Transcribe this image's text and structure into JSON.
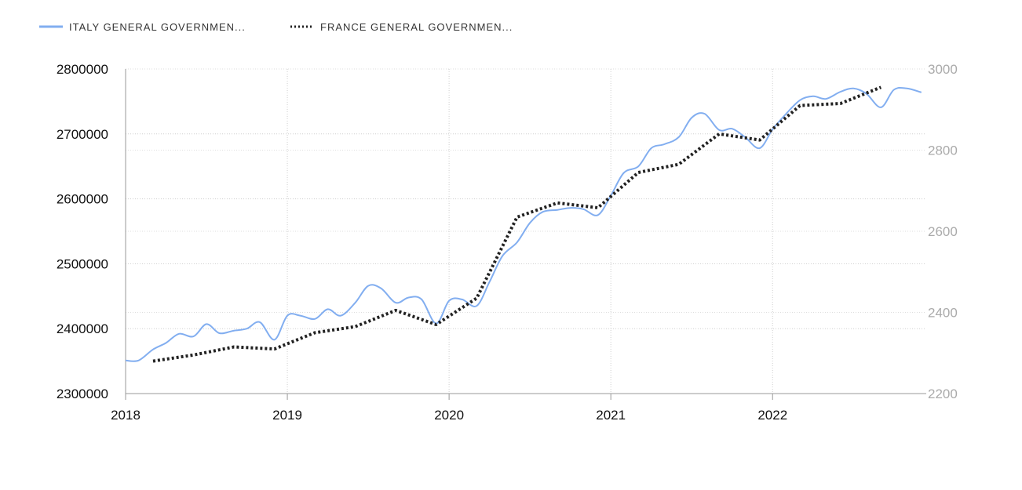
{
  "chart_data": {
    "type": "line",
    "title": "",
    "xlabel": "",
    "ylabel": "",
    "legend_position": "top-left",
    "grid": true,
    "x_ticks": [
      "2018",
      "2019",
      "2020",
      "2021",
      "2022"
    ],
    "x_range": [
      2018.0,
      2022.95
    ],
    "y_left": {
      "range": [
        2300000,
        2800000
      ],
      "ticks": [
        "2300000",
        "2400000",
        "2500000",
        "2600000",
        "2700000",
        "2800000"
      ]
    },
    "y_right": {
      "range": [
        2200,
        3000
      ],
      "ticks": [
        "2200",
        "2400",
        "2600",
        "2800",
        "3000"
      ]
    },
    "series": [
      {
        "name": "ITALY GENERAL GOVERNMEN...",
        "axis": "left",
        "style": "solid",
        "color": "#82aef0",
        "x": [
          2018.0,
          2018.08,
          2018.17,
          2018.25,
          2018.33,
          2018.42,
          2018.5,
          2018.58,
          2018.67,
          2018.75,
          2018.83,
          2018.92,
          2019.0,
          2019.08,
          2019.17,
          2019.25,
          2019.33,
          2019.42,
          2019.5,
          2019.58,
          2019.67,
          2019.75,
          2019.83,
          2019.92,
          2020.0,
          2020.08,
          2020.17,
          2020.25,
          2020.33,
          2020.42,
          2020.5,
          2020.58,
          2020.67,
          2020.75,
          2020.83,
          2020.92,
          2021.0,
          2021.08,
          2021.17,
          2021.25,
          2021.33,
          2021.42,
          2021.5,
          2021.58,
          2021.67,
          2021.75,
          2021.83,
          2021.92,
          2022.0,
          2022.08,
          2022.17,
          2022.25,
          2022.33,
          2022.42,
          2022.5,
          2022.58,
          2022.67,
          2022.75,
          2022.83,
          2022.92
        ],
        "values": [
          2351000,
          2351000,
          2368000,
          2378000,
          2392000,
          2388000,
          2407000,
          2393000,
          2397000,
          2400000,
          2410000,
          2383000,
          2420000,
          2420000,
          2415000,
          2430000,
          2420000,
          2440000,
          2466000,
          2462000,
          2440000,
          2448000,
          2445000,
          2408000,
          2443000,
          2445000,
          2435000,
          2472000,
          2512000,
          2533000,
          2563000,
          2580000,
          2583000,
          2586000,
          2584000,
          2575000,
          2605000,
          2640000,
          2650000,
          2678000,
          2684000,
          2695000,
          2725000,
          2731000,
          2706000,
          2708000,
          2695000,
          2678000,
          2707000,
          2730000,
          2752000,
          2758000,
          2754000,
          2765000,
          2770000,
          2762000,
          2741000,
          2768000,
          2770000,
          2764000
        ]
      },
      {
        "name": "FRANCE GENERAL GOVERNMEN...",
        "axis": "right",
        "style": "dotted",
        "color": "#222222",
        "x": [
          2018.17,
          2018.42,
          2018.67,
          2018.92,
          2019.17,
          2019.42,
          2019.67,
          2019.92,
          2020.17,
          2020.42,
          2020.67,
          2020.92,
          2021.17,
          2021.42,
          2021.67,
          2021.92,
          2022.17,
          2022.42,
          2022.67
        ],
        "values": [
          2280,
          2295,
          2315,
          2310,
          2350,
          2365,
          2405,
          2370,
          2435,
          2635,
          2670,
          2658,
          2745,
          2765,
          2840,
          2825,
          2910,
          2915,
          2955
        ]
      }
    ]
  }
}
